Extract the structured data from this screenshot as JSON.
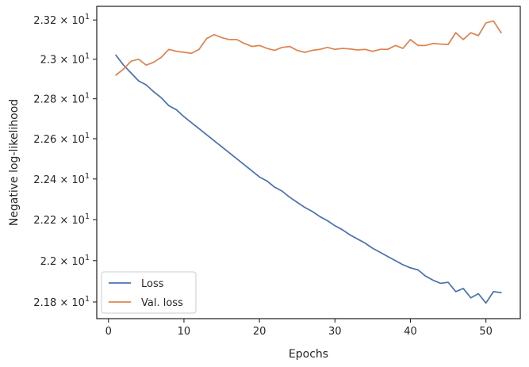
{
  "chart_data": {
    "type": "line",
    "title": "",
    "xlabel": "Epochs",
    "ylabel": "Negative log-likelihood",
    "xlim": [
      -1.55,
      54.55
    ],
    "ylim": [
      21.72,
      23.27
    ],
    "yscale": "log",
    "grid": false,
    "legend_position": "bottom-left",
    "x_ticks": [
      0,
      10,
      20,
      30,
      40,
      50
    ],
    "x_tick_labels": [
      "0",
      "10",
      "20",
      "30",
      "40",
      "50"
    ],
    "y_ticks": [
      21.8,
      22.0,
      22.2,
      22.4,
      22.6,
      22.8,
      23.0,
      23.2
    ],
    "y_tick_labels": [
      [
        "2.18",
        "10",
        "1"
      ],
      [
        "2.2",
        "10",
        "1"
      ],
      [
        "2.22",
        "10",
        "1"
      ],
      [
        "2.24",
        "10",
        "1"
      ],
      [
        "2.26",
        "10",
        "1"
      ],
      [
        "2.28",
        "10",
        "1"
      ],
      [
        "2.3",
        "10",
        "1"
      ],
      [
        "2.32",
        "10",
        "1"
      ]
    ],
    "x": [
      1,
      2,
      3,
      4,
      5,
      6,
      7,
      8,
      9,
      10,
      11,
      12,
      13,
      14,
      15,
      16,
      17,
      18,
      19,
      20,
      21,
      22,
      23,
      24,
      25,
      26,
      27,
      28,
      29,
      30,
      31,
      32,
      33,
      34,
      35,
      36,
      37,
      38,
      39,
      40,
      41,
      42,
      43,
      44,
      45,
      46,
      47,
      48,
      49,
      50,
      51,
      52
    ],
    "series": [
      {
        "name": "Loss",
        "color": "#4c72b0",
        "values": [
          23.02,
          22.97,
          22.93,
          22.89,
          22.87,
          22.835,
          22.805,
          22.765,
          22.745,
          22.71,
          22.68,
          22.65,
          22.62,
          22.59,
          22.56,
          22.53,
          22.5,
          22.47,
          22.44,
          22.41,
          22.39,
          22.36,
          22.34,
          22.31,
          22.285,
          22.26,
          22.24,
          22.215,
          22.195,
          22.17,
          22.15,
          22.125,
          22.105,
          22.085,
          22.06,
          22.04,
          22.02,
          22.0,
          21.98,
          21.965,
          21.955,
          21.925,
          21.905,
          21.89,
          21.895,
          21.85,
          21.865,
          21.82,
          21.84,
          21.795,
          21.85,
          21.845
        ]
      },
      {
        "name": "Val. loss",
        "color": "#dd8452",
        "values": [
          22.92,
          22.95,
          22.99,
          23.0,
          22.97,
          22.985,
          23.01,
          23.05,
          23.04,
          23.035,
          23.03,
          23.05,
          23.105,
          23.125,
          23.11,
          23.1,
          23.1,
          23.08,
          23.065,
          23.07,
          23.055,
          23.045,
          23.06,
          23.065,
          23.045,
          23.035,
          23.045,
          23.05,
          23.06,
          23.05,
          23.055,
          23.052,
          23.047,
          23.05,
          23.04,
          23.05,
          23.05,
          23.07,
          23.055,
          23.1,
          23.07,
          23.07,
          23.08,
          23.077,
          23.075,
          23.135,
          23.1,
          23.135,
          23.12,
          23.185,
          23.195,
          23.135
        ]
      }
    ]
  }
}
